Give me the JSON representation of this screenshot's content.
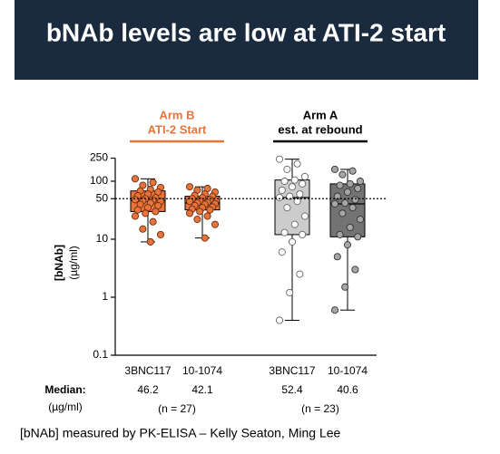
{
  "chart_data": {
    "type": "box",
    "title": "bNAb levels are low at ATI-2 start",
    "y_label": "[bNAb]",
    "y_unit": "(µg/ml)",
    "ylim": [
      0.1,
      250
    ],
    "yticks": [
      0.1,
      1,
      10,
      50,
      100,
      250
    ],
    "log_scale": true,
    "reference_line": 50,
    "median_label": "Median:",
    "median_unit": "(µg/ml)",
    "footnote": "[bNAb] measured by PK-ELISA – Kelly Seaton, Ming Lee",
    "groups": [
      {
        "label": "Arm B",
        "sublabel": "ATI-2 Start",
        "color": "#e8743b",
        "n_label": "(n = 27)",
        "boxes": [
          {
            "category": "3BNC117",
            "fill": "#e8743b",
            "point_fill": "#e8743b",
            "point_stroke": "#6b2e10",
            "min": 9,
            "q1": 30,
            "median": 46.2,
            "q3": 68,
            "max": 110,
            "points": [
              110,
              95,
              85,
              78,
              72,
              68,
              65,
              60,
              56,
              52,
              50,
              48,
              47,
              46.2,
              45,
              42,
              40,
              38,
              35,
              32,
              30,
              28,
              25,
              20,
              15,
              12,
              9
            ]
          },
          {
            "category": "10-1074",
            "fill": "#e8743b",
            "point_fill": "#e8743b",
            "point_stroke": "#6b2e10",
            "min": 10.5,
            "q1": 32,
            "median": 42.1,
            "q3": 55,
            "max": 80,
            "points": [
              80,
              75,
              70,
              65,
              60,
              57,
              55,
              52,
              50,
              48,
              46,
              45,
              43,
              42.1,
              41,
              40,
              38,
              36,
              35,
              33,
              32,
              30,
              28,
              25,
              22,
              18,
              10.5
            ]
          }
        ]
      },
      {
        "label": "Arm A",
        "sublabel": "est. at rebound",
        "color": "#000000",
        "n_label": "(n = 23)",
        "boxes": [
          {
            "category": "3BNC117",
            "fill": "#cccccc",
            "point_fill": "#ffffff",
            "point_stroke": "#666666",
            "min": 0.4,
            "q1": 12,
            "median": 52.4,
            "q3": 105,
            "max": 240,
            "points": [
              240,
              200,
              160,
              120,
              105,
              100,
              90,
              80,
              70,
              60,
              55,
              52.4,
              45,
              35,
              25,
              18,
              13,
              12,
              9,
              6,
              2.5,
              1.2,
              0.4
            ]
          },
          {
            "category": "10-1074",
            "fill": "#737373",
            "point_fill": "#a6a6a6",
            "point_stroke": "#333333",
            "min": 0.6,
            "q1": 11,
            "median": 40.6,
            "q3": 90,
            "max": 160,
            "points": [
              160,
              150,
              130,
              100,
              90,
              85,
              75,
              65,
              55,
              48,
              42,
              40.6,
              35,
              28,
              22,
              16,
              12,
              11,
              8,
              5,
              3,
              1.5,
              0.6
            ]
          }
        ]
      }
    ]
  }
}
